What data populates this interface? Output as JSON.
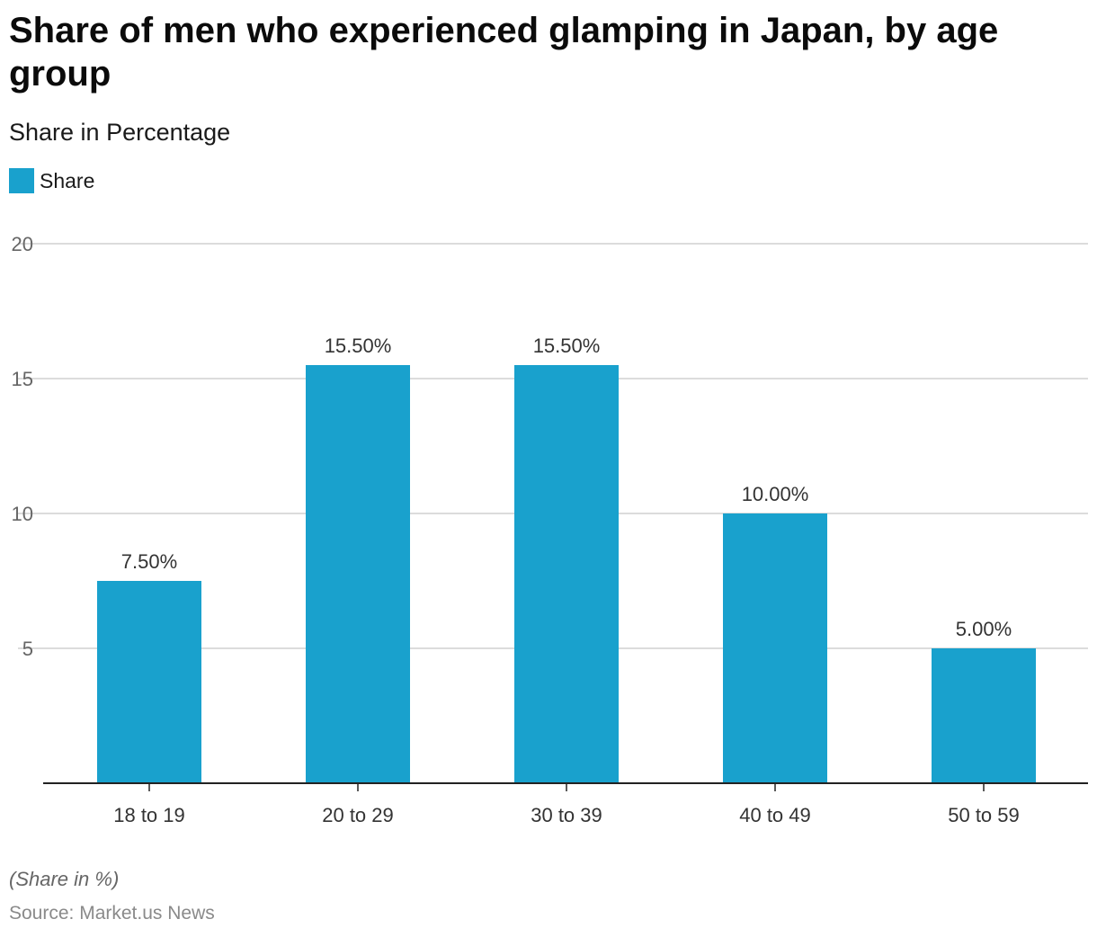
{
  "chart_data": {
    "type": "bar",
    "title": "Share of men who experienced glamping in Japan, by age group",
    "subtitle": "Share in Percentage",
    "legend": "Share",
    "legend_position": "top-left",
    "categories": [
      "18 to 19",
      "20 to 29",
      "30 to 39",
      "40 to 49",
      "50 to 59"
    ],
    "series": [
      {
        "name": "Share",
        "values": [
          7.5,
          15.5,
          15.5,
          10.0,
          5.0
        ],
        "labels": [
          "7.50%",
          "15.50%",
          "15.50%",
          "10.00%",
          "5.00%"
        ],
        "color": "#19a1cd"
      }
    ],
    "yticks": [
      5,
      10,
      15,
      20
    ],
    "ylim": [
      0,
      20
    ],
    "grid": true,
    "footnote": "(Share in %)",
    "source": "Source: Market.us News"
  }
}
